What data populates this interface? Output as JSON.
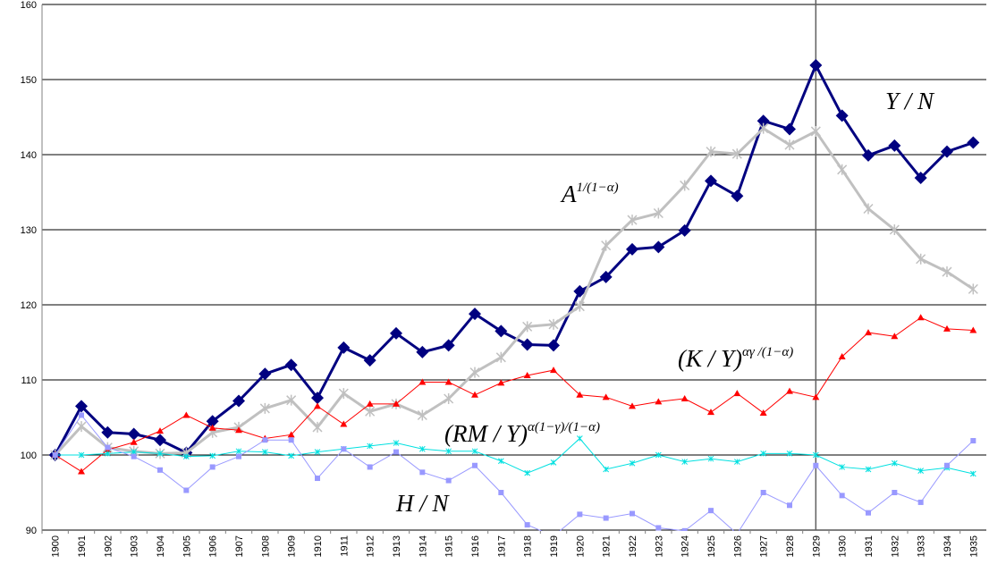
{
  "chart_data": {
    "type": "line",
    "categories": [
      "1900",
      "1901",
      "1902",
      "1903",
      "1904",
      "1905",
      "1906",
      "1907",
      "1908",
      "1909",
      "1910",
      "1911",
      "1912",
      "1913",
      "1914",
      "1915",
      "1916",
      "1917",
      "1918",
      "1919",
      "1920",
      "1921",
      "1922",
      "1923",
      "1924",
      "1925",
      "1926",
      "1927",
      "1928",
      "1929",
      "1930",
      "1931",
      "1932",
      "1933",
      "1934",
      "1935"
    ],
    "ylim": [
      90,
      160
    ],
    "yticks": [
      90,
      100,
      110,
      120,
      130,
      140,
      150,
      160
    ],
    "grid": true,
    "vline": "1929",
    "series": [
      {
        "name": "Y / N",
        "color": "#000080",
        "marker": "diamond",
        "values": [
          100,
          106.5,
          103,
          102.8,
          102,
          100.3,
          104.5,
          107.2,
          110.8,
          112,
          107.6,
          114.3,
          112.6,
          116.2,
          113.7,
          114.6,
          118.8,
          116.5,
          114.7,
          114.6,
          121.8,
          123.7,
          127.4,
          127.7,
          129.9,
          136.5,
          134.5,
          144.5,
          143.4,
          151.9,
          145.2,
          139.9,
          141.2,
          136.9,
          140.4,
          141.6
        ]
      },
      {
        "name": "A",
        "exponent": "1/(1−α)",
        "color": "#c0c0c0",
        "marker": "asterisk",
        "values": [
          100,
          103.8,
          101,
          100.5,
          100.2,
          100.3,
          103,
          103.7,
          106.2,
          107.3,
          103.7,
          108.2,
          105.8,
          106.8,
          105.3,
          107.5,
          111,
          113,
          117.1,
          117.4,
          119.8,
          127.9,
          131.3,
          132.2,
          135.9,
          140.4,
          140.1,
          143.5,
          141.3,
          143.1,
          138,
          132.8,
          130,
          126.1,
          124.4,
          122.1
        ]
      },
      {
        "name": "(K / Y)",
        "exponent": "αγ /(1−α)",
        "color": "#ff0000",
        "marker": "triangle",
        "values": [
          100,
          97.8,
          100.7,
          101.7,
          103.2,
          105.3,
          103.6,
          103.3,
          102.2,
          102.7,
          106.5,
          104.1,
          106.8,
          106.8,
          109.7,
          109.7,
          108,
          109.6,
          110.6,
          111.3,
          108,
          107.7,
          106.5,
          107.1,
          107.5,
          105.7,
          108.2,
          105.6,
          108.5,
          107.7,
          113.1,
          116.3,
          115.8,
          118.3,
          116.8,
          116.6
        ]
      },
      {
        "name": "(RM / Y)",
        "exponent": "α(1−γ)/(1−α)",
        "color": "#00e0e0",
        "marker": "star",
        "values": [
          100,
          100,
          100.2,
          100.4,
          100.2,
          99.8,
          99.9,
          100.5,
          100.4,
          99.9,
          100.4,
          100.8,
          101.2,
          101.6,
          100.8,
          100.5,
          100.5,
          99.2,
          97.6,
          99,
          102.2,
          98.1,
          98.9,
          100,
          99.1,
          99.5,
          99.1,
          100.2,
          100.2,
          100,
          98.4,
          98.1,
          98.9,
          97.9,
          98.3,
          97.5
        ]
      },
      {
        "name": "H / N",
        "color": "#9999ff",
        "marker": "square",
        "values": [
          100,
          105.3,
          101,
          99.8,
          98,
          95.3,
          98.4,
          99.8,
          102,
          102,
          96.9,
          100.8,
          98.4,
          100.4,
          97.7,
          96.6,
          98.6,
          95,
          90.7,
          89.2,
          92.1,
          91.6,
          92.2,
          90.3,
          89.9,
          92.6,
          89.5,
          95,
          93.3,
          98.6,
          94.6,
          92.3,
          95,
          93.7,
          98.6,
          101.9
        ]
      }
    ]
  }
}
